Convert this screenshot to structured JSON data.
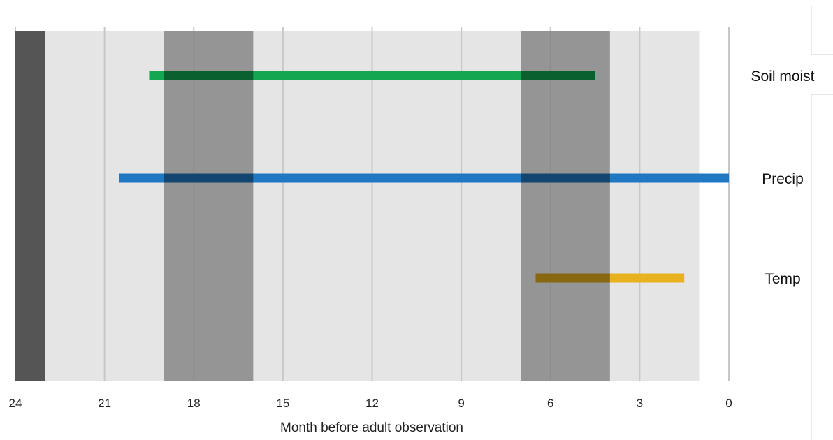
{
  "chart_data": {
    "type": "bar",
    "orientation": "horizontal-range",
    "title": "",
    "xlabel": "Month before adult observation",
    "ylabel": "",
    "x_axis_reversed": true,
    "xlim": [
      24,
      0
    ],
    "xticks": [
      24,
      21,
      18,
      15,
      12,
      9,
      6,
      3,
      0
    ],
    "grid": true,
    "background_band": {
      "from": 24,
      "to": 1,
      "color": "#e5e5e5"
    },
    "shaded_bands": [
      {
        "from": 24,
        "to": 23,
        "color": "#555555",
        "opacity": 1.0
      },
      {
        "from": 19,
        "to": 16,
        "color": "#7a7a7a",
        "opacity": 0.75
      },
      {
        "from": 7,
        "to": 4,
        "color": "#7a7a7a",
        "opacity": 0.75
      }
    ],
    "series": [
      {
        "name": "Soil moist",
        "start": 19.5,
        "end": 4.5,
        "color": "#14a651"
      },
      {
        "name": "Precip",
        "start": 20.5,
        "end": 0,
        "color": "#1f78c1"
      },
      {
        "name": "Temp",
        "start": 6.5,
        "end": 1.5,
        "color": "#e8b11e"
      }
    ]
  }
}
